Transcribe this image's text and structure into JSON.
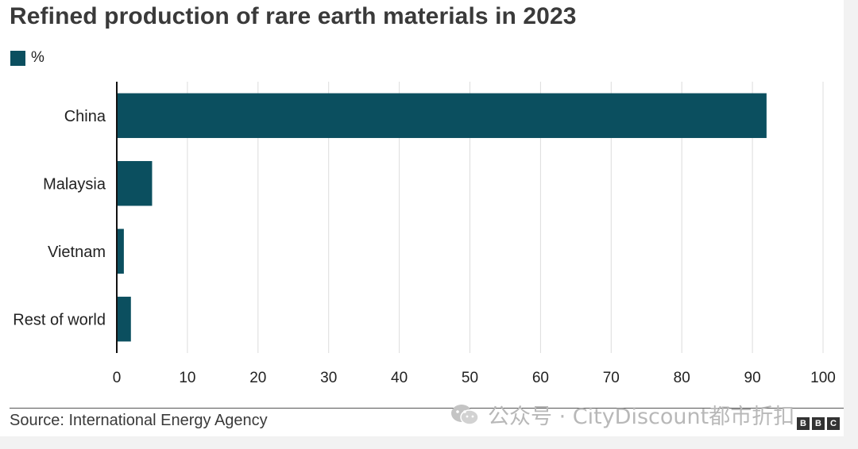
{
  "chart_data": {
    "type": "bar",
    "orientation": "horizontal",
    "title": "Refined production of rare earth materials in 2023",
    "legend": [
      {
        "label": "%",
        "color": "#0b4f5f"
      }
    ],
    "categories": [
      "China",
      "Malaysia",
      "Vietnam",
      "Rest of world"
    ],
    "values": [
      92,
      5,
      1,
      2
    ],
    "xlim": [
      0,
      100
    ],
    "xticks": [
      0,
      10,
      20,
      30,
      40,
      50,
      60,
      70,
      80,
      90,
      100
    ],
    "grid": true,
    "bar_color": "#0b4f5f"
  },
  "footer": {
    "source": "Source: International Energy Agency",
    "watermark": "公众号 · CityDiscount都市折扣",
    "logo_letters": [
      "B",
      "B",
      "C"
    ]
  }
}
